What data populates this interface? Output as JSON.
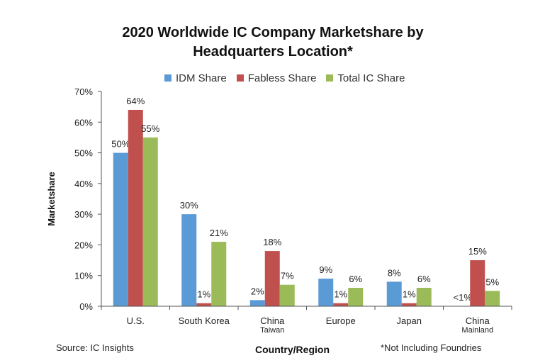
{
  "chart_data": {
    "type": "bar",
    "title_line1": "2020 Worldwide IC Company Marketshare by",
    "title_line2": "Headquarters Location*",
    "xlabel": "Country/Region",
    "ylabel": "Marketshare",
    "ylim": [
      0,
      70
    ],
    "yticks": [
      "0%",
      "10%",
      "20%",
      "30%",
      "40%",
      "50%",
      "60%",
      "70%"
    ],
    "categories": [
      [
        "U.S."
      ],
      [
        "South Korea"
      ],
      [
        "China",
        "Taiwan"
      ],
      [
        "Europe"
      ],
      [
        "Japan"
      ],
      [
        "China",
        "Mainland"
      ]
    ],
    "series": [
      {
        "name": "IDM Share",
        "color": "#5b9bd5",
        "values": [
          50,
          30,
          2,
          9,
          8,
          0
        ],
        "labels": [
          "50%",
          "30%",
          "2%",
          "9%",
          "8%",
          "<1%"
        ]
      },
      {
        "name": "Fabless Share",
        "color": "#c0504d",
        "values": [
          64,
          1,
          18,
          1,
          1,
          15
        ],
        "labels": [
          "64%",
          "1%",
          "18%",
          "1%",
          "1%",
          "15%"
        ]
      },
      {
        "name": "Total IC Share",
        "color": "#9bbb59",
        "values": [
          55,
          21,
          7,
          6,
          6,
          5
        ],
        "labels": [
          "55%",
          "21%",
          "7%",
          "6%",
          "6%",
          "5%"
        ]
      }
    ],
    "grid": false,
    "legend_position": "top"
  },
  "footer": {
    "source": "Source: IC Insights",
    "note": "*Not Including Foundries"
  }
}
